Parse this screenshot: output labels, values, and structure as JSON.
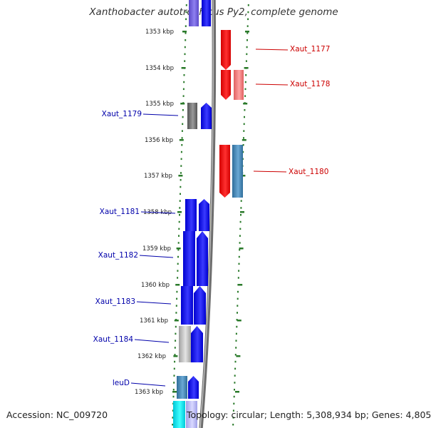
{
  "title": "Xanthobacter autotrophicus Py2, complete genome",
  "footer": {
    "accession": "Accession: NC_009720",
    "summary": "Topology: circular; Length: 5,308,934 bp; Genes: 4,805"
  },
  "colors": {
    "forward_strand": "#0000ee",
    "reverse_strand": "#ee0000",
    "backbone": "#888888",
    "tick_marks": "#2a7a2a",
    "forward_label": "#0000aa",
    "reverse_label": "#cc0000"
  },
  "ruler": {
    "unit": "kbp",
    "tick_labels": [
      "1353 kbp",
      "1354 kbp",
      "1355 kbp",
      "1356 kbp",
      "1357 kbp",
      "1358 kbp",
      "1359 kbp",
      "1360 kbp",
      "1361 kbp",
      "1362 kbp",
      "1363 kbp"
    ]
  },
  "gene_labels": [
    {
      "text": "Xaut_1177",
      "strand": "reverse"
    },
    {
      "text": "Xaut_1178",
      "strand": "reverse"
    },
    {
      "text": "Xaut_1179",
      "strand": "forward"
    },
    {
      "text": "Xaut_1180",
      "strand": "reverse"
    },
    {
      "text": "Xaut_1181",
      "strand": "forward"
    },
    {
      "text": "Xaut_1182",
      "strand": "forward"
    },
    {
      "text": "Xaut_1183",
      "strand": "forward"
    },
    {
      "text": "Xaut_1184",
      "strand": "forward"
    },
    {
      "text": "leuD",
      "strand": "forward"
    }
  ]
}
